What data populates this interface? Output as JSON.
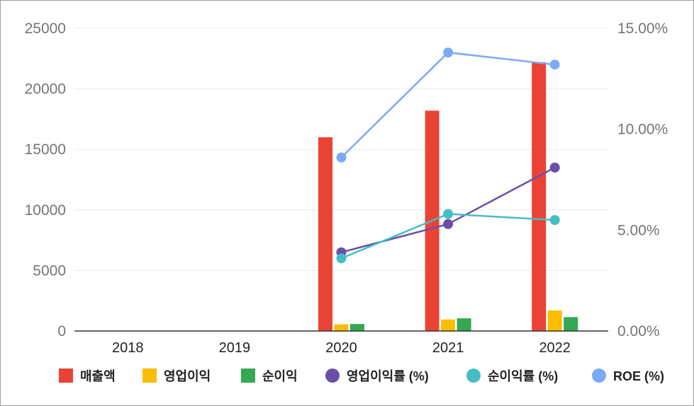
{
  "chart_data": {
    "type": "bar",
    "categories": [
      "2018",
      "2019",
      "2020",
      "2021",
      "2022"
    ],
    "y_left": {
      "ylim": [
        0,
        25000
      ],
      "ticks": [
        "0",
        "5000",
        "10000",
        "15000",
        "20000",
        "25000"
      ],
      "tick_values": [
        0,
        5000,
        10000,
        15000,
        20000,
        25000
      ]
    },
    "y_right": {
      "ylim": [
        0,
        15
      ],
      "ticks": [
        "0.00%",
        "5.00%",
        "10.00%",
        "15.00%"
      ],
      "tick_values": [
        0,
        5,
        10,
        15
      ]
    },
    "bar_series": [
      {
        "name": "매출액",
        "color": "#ea4335",
        "values": [
          null,
          null,
          16000,
          18200,
          22200
        ]
      },
      {
        "name": "영업이익",
        "color": "#fbbc04",
        "values": [
          null,
          null,
          550,
          950,
          1700
        ]
      },
      {
        "name": "순이익",
        "color": "#34a853",
        "values": [
          null,
          null,
          580,
          1050,
          1150
        ]
      }
    ],
    "line_series": [
      {
        "name": "영업이익률 (%)",
        "color": "#6a4fa8",
        "values": [
          null,
          null,
          3.9,
          5.3,
          8.1
        ]
      },
      {
        "name": "순이익률 (%)",
        "color": "#46bdc6",
        "values": [
          null,
          null,
          3.6,
          5.8,
          5.5
        ]
      },
      {
        "name": "ROE (%)",
        "color": "#7baaf7",
        "values": [
          null,
          null,
          8.6,
          13.8,
          13.2
        ]
      }
    ],
    "legend_position": "bottom",
    "grid": true
  }
}
